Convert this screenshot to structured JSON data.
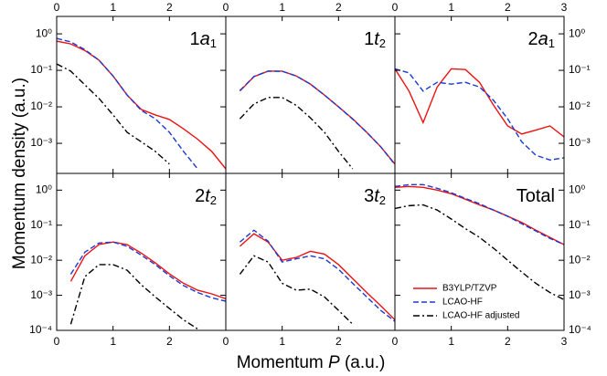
{
  "figure": {
    "ylabel": "Momentum density (a.u.)",
    "xlabel": [
      "Momentum ",
      "P",
      " (a.u.)"
    ]
  },
  "chart_data": [
    {
      "type": "line",
      "annotation": [
        "1",
        "a",
        "1"
      ],
      "yscale": "log",
      "yaxis_side": "left",
      "xaxis_side": "top",
      "xlim": [
        0,
        3
      ],
      "xticks": [
        0,
        1,
        2
      ],
      "ylim": [
        0.00015,
        3
      ],
      "yticks": [
        {
          "value": 1,
          "label": "10⁰"
        },
        {
          "value": 0.1,
          "label": "10⁻¹"
        },
        {
          "value": 0.01,
          "label": "10⁻²"
        },
        {
          "value": 0.001,
          "label": "10⁻³"
        }
      ],
      "x": [
        0,
        0.25,
        0.5,
        0.75,
        1,
        1.25,
        1.5,
        1.75,
        2,
        2.25,
        2.5,
        2.75,
        3
      ],
      "series": [
        {
          "color": "#ee1111",
          "style": "solid",
          "values": [
            0.63,
            0.53,
            0.35,
            0.19,
            0.07,
            0.021,
            0.0085,
            0.006,
            0.0045,
            0.0025,
            0.0013,
            0.0006,
            0.0002
          ]
        },
        {
          "color": "#1a3ad4",
          "style": "dashed",
          "values": [
            0.75,
            0.6,
            0.37,
            0.19,
            0.07,
            0.021,
            0.008,
            0.0047,
            0.002,
            0.0006,
            0.0002,
            null,
            null
          ]
        },
        {
          "color": "#000000",
          "style": "dashdot",
          "values": [
            0.15,
            0.095,
            0.04,
            0.017,
            0.006,
            0.002,
            0.0011,
            0.0006,
            0.00027,
            null,
            null,
            null,
            null
          ]
        }
      ]
    },
    {
      "type": "line",
      "annotation": [
        "1",
        "t",
        "2"
      ],
      "yscale": "log",
      "xaxis_side": "top",
      "xlim": [
        0,
        3
      ],
      "xticks": [
        0,
        1,
        2
      ],
      "ylim": [
        0.00015,
        3
      ],
      "x": [
        0,
        0.25,
        0.5,
        0.75,
        1,
        1.25,
        1.5,
        1.75,
        2,
        2.25,
        2.5,
        2.75,
        3
      ],
      "series": [
        {
          "color": "#ee1111",
          "style": "solid",
          "values": [
            null,
            0.027,
            0.067,
            0.095,
            0.095,
            0.07,
            0.042,
            0.021,
            0.01,
            0.0047,
            0.002,
            0.0008,
            0.00027
          ]
        },
        {
          "color": "#1a3ad4",
          "style": "dashed",
          "values": [
            null,
            0.028,
            0.068,
            0.095,
            0.094,
            0.07,
            0.042,
            0.021,
            0.01,
            0.0046,
            0.002,
            0.0008,
            0.00026
          ]
        },
        {
          "color": "#000000",
          "style": "dashdot",
          "values": [
            null,
            0.0047,
            0.012,
            0.018,
            0.018,
            0.011,
            0.005,
            0.002,
            0.0006,
            0.0002,
            null,
            null,
            null
          ]
        }
      ]
    },
    {
      "type": "line",
      "annotation": [
        "2",
        "a",
        "1"
      ],
      "yscale": "log",
      "yaxis_side": "right",
      "xaxis_side": "top",
      "xlim": [
        0,
        3
      ],
      "xticks": [
        0,
        1,
        2,
        3
      ],
      "ylim": [
        0.00015,
        3
      ],
      "yticks": [
        {
          "value": 1,
          "label": "10⁰"
        },
        {
          "value": 0.1,
          "label": "10⁻¹"
        },
        {
          "value": 0.01,
          "label": "10⁻²"
        },
        {
          "value": 0.001,
          "label": "10⁻³"
        }
      ],
      "x": [
        0,
        0.25,
        0.5,
        0.75,
        1,
        1.25,
        1.5,
        1.75,
        2,
        2.25,
        2.5,
        2.75,
        3
      ],
      "series": [
        {
          "color": "#ee1111",
          "style": "solid",
          "values": [
            0.11,
            0.027,
            0.0037,
            0.035,
            0.11,
            0.105,
            0.047,
            0.011,
            0.003,
            0.0018,
            0.0023,
            0.003,
            0.0015
          ]
        },
        {
          "color": "#1a3ad4",
          "style": "dashed",
          "values": [
            0.11,
            0.085,
            0.027,
            0.047,
            0.042,
            0.047,
            0.035,
            0.015,
            0.0047,
            0.0011,
            0.00047,
            0.00035,
            0.0004
          ]
        }
      ]
    },
    {
      "type": "line",
      "annotation": [
        "2",
        "t",
        "2"
      ],
      "yscale": "log",
      "yaxis_side": "left",
      "xaxis_side": "bottom",
      "xlim": [
        0,
        3
      ],
      "xticks": [
        0,
        1,
        2
      ],
      "ylim": [
        0.0001,
        3
      ],
      "yticks": [
        {
          "value": 1,
          "label": "10⁰"
        },
        {
          "value": 0.1,
          "label": "10⁻¹"
        },
        {
          "value": 0.01,
          "label": "10⁻²"
        },
        {
          "value": 0.001,
          "label": "10⁻³"
        },
        {
          "value": 0.0001,
          "label": "10⁻⁴"
        }
      ],
      "x": [
        0,
        0.25,
        0.5,
        0.75,
        1,
        1.25,
        1.5,
        1.75,
        2,
        2.25,
        2.5,
        2.75,
        3
      ],
      "series": [
        {
          "color": "#ee1111",
          "style": "solid",
          "values": [
            null,
            0.0025,
            0.0134,
            0.028,
            0.033,
            0.028,
            0.016,
            0.0084,
            0.0041,
            0.0022,
            0.0014,
            0.0011,
            0.0008
          ]
        },
        {
          "color": "#1a3ad4",
          "style": "dashed",
          "values": [
            null,
            0.004,
            0.017,
            0.031,
            0.033,
            0.025,
            0.014,
            0.0075,
            0.0036,
            0.0019,
            0.0012,
            0.00085,
            0.00068
          ]
        },
        {
          "color": "#000000",
          "style": "dashdot",
          "values": [
            null,
            0.00015,
            0.0034,
            0.0075,
            0.0075,
            0.0052,
            0.002,
            0.0009,
            0.00042,
            0.0002,
            0.00011,
            null,
            null
          ]
        }
      ]
    },
    {
      "type": "line",
      "annotation": [
        "3",
        "t",
        "2"
      ],
      "yscale": "log",
      "xaxis_side": "bottom",
      "xlim": [
        0,
        3
      ],
      "xticks": [
        0,
        1,
        2
      ],
      "ylim": [
        0.0001,
        3
      ],
      "x": [
        0,
        0.25,
        0.5,
        0.75,
        1,
        1.25,
        1.5,
        1.75,
        2,
        2.25,
        2.5,
        2.75,
        3
      ],
      "series": [
        {
          "color": "#ee1111",
          "style": "solid",
          "values": [
            null,
            0.025,
            0.057,
            0.033,
            0.01,
            0.012,
            0.018,
            0.015,
            0.0075,
            0.003,
            0.0012,
            0.0005,
            0.0002
          ]
        },
        {
          "color": "#1a3ad4",
          "style": "dashed",
          "values": [
            null,
            0.033,
            0.072,
            0.035,
            0.0089,
            0.011,
            0.0134,
            0.011,
            0.0055,
            0.0022,
            0.0009,
            0.00037,
            0.00018
          ]
        },
        {
          "color": "#000000",
          "style": "dashdot",
          "values": [
            null,
            0.004,
            0.0134,
            0.0089,
            0.0022,
            0.0014,
            0.0015,
            0.0009,
            0.00037,
            0.00015,
            null,
            null,
            null
          ]
        }
      ]
    },
    {
      "type": "line",
      "annotation": [
        "Total"
      ],
      "yscale": "log",
      "yaxis_side": "right",
      "xaxis_side": "bottom",
      "legend": "lower left",
      "xlim": [
        0,
        3
      ],
      "xticks": [
        0,
        1,
        2,
        3
      ],
      "ylim": [
        0.0001,
        3
      ],
      "yticks": [
        {
          "value": 1,
          "label": "10⁰"
        },
        {
          "value": 0.1,
          "label": "10⁻¹"
        },
        {
          "value": 0.01,
          "label": "10⁻²"
        },
        {
          "value": 0.001,
          "label": "10⁻³"
        },
        {
          "value": 0.0001,
          "label": "10⁻⁴"
        }
      ],
      "x": [
        0,
        0.25,
        0.5,
        0.75,
        1,
        1.25,
        1.5,
        1.75,
        2,
        2.25,
        2.5,
        2.75,
        3
      ],
      "series": [
        {
          "name": "B3YLP/TZVP",
          "color": "#ee1111",
          "style": "solid",
          "values": [
            1.2,
            1.27,
            1.2,
            1.0,
            0.79,
            0.55,
            0.38,
            0.27,
            0.18,
            0.12,
            0.072,
            0.045,
            0.028
          ]
        },
        {
          "name": "LCAO-HF",
          "color": "#1a3ad4",
          "style": "dashed",
          "values": [
            1.27,
            1.43,
            1.43,
            1.13,
            0.84,
            0.58,
            0.41,
            0.27,
            0.18,
            0.11,
            0.068,
            0.042,
            0.028
          ]
        },
        {
          "name": "LCAO-HF adjusted",
          "color": "#000000",
          "style": "dashdot",
          "values": [
            0.3,
            0.36,
            0.38,
            0.27,
            0.15,
            0.08,
            0.045,
            0.022,
            0.01,
            0.0046,
            0.0022,
            0.0012,
            0.00075
          ]
        }
      ]
    }
  ]
}
